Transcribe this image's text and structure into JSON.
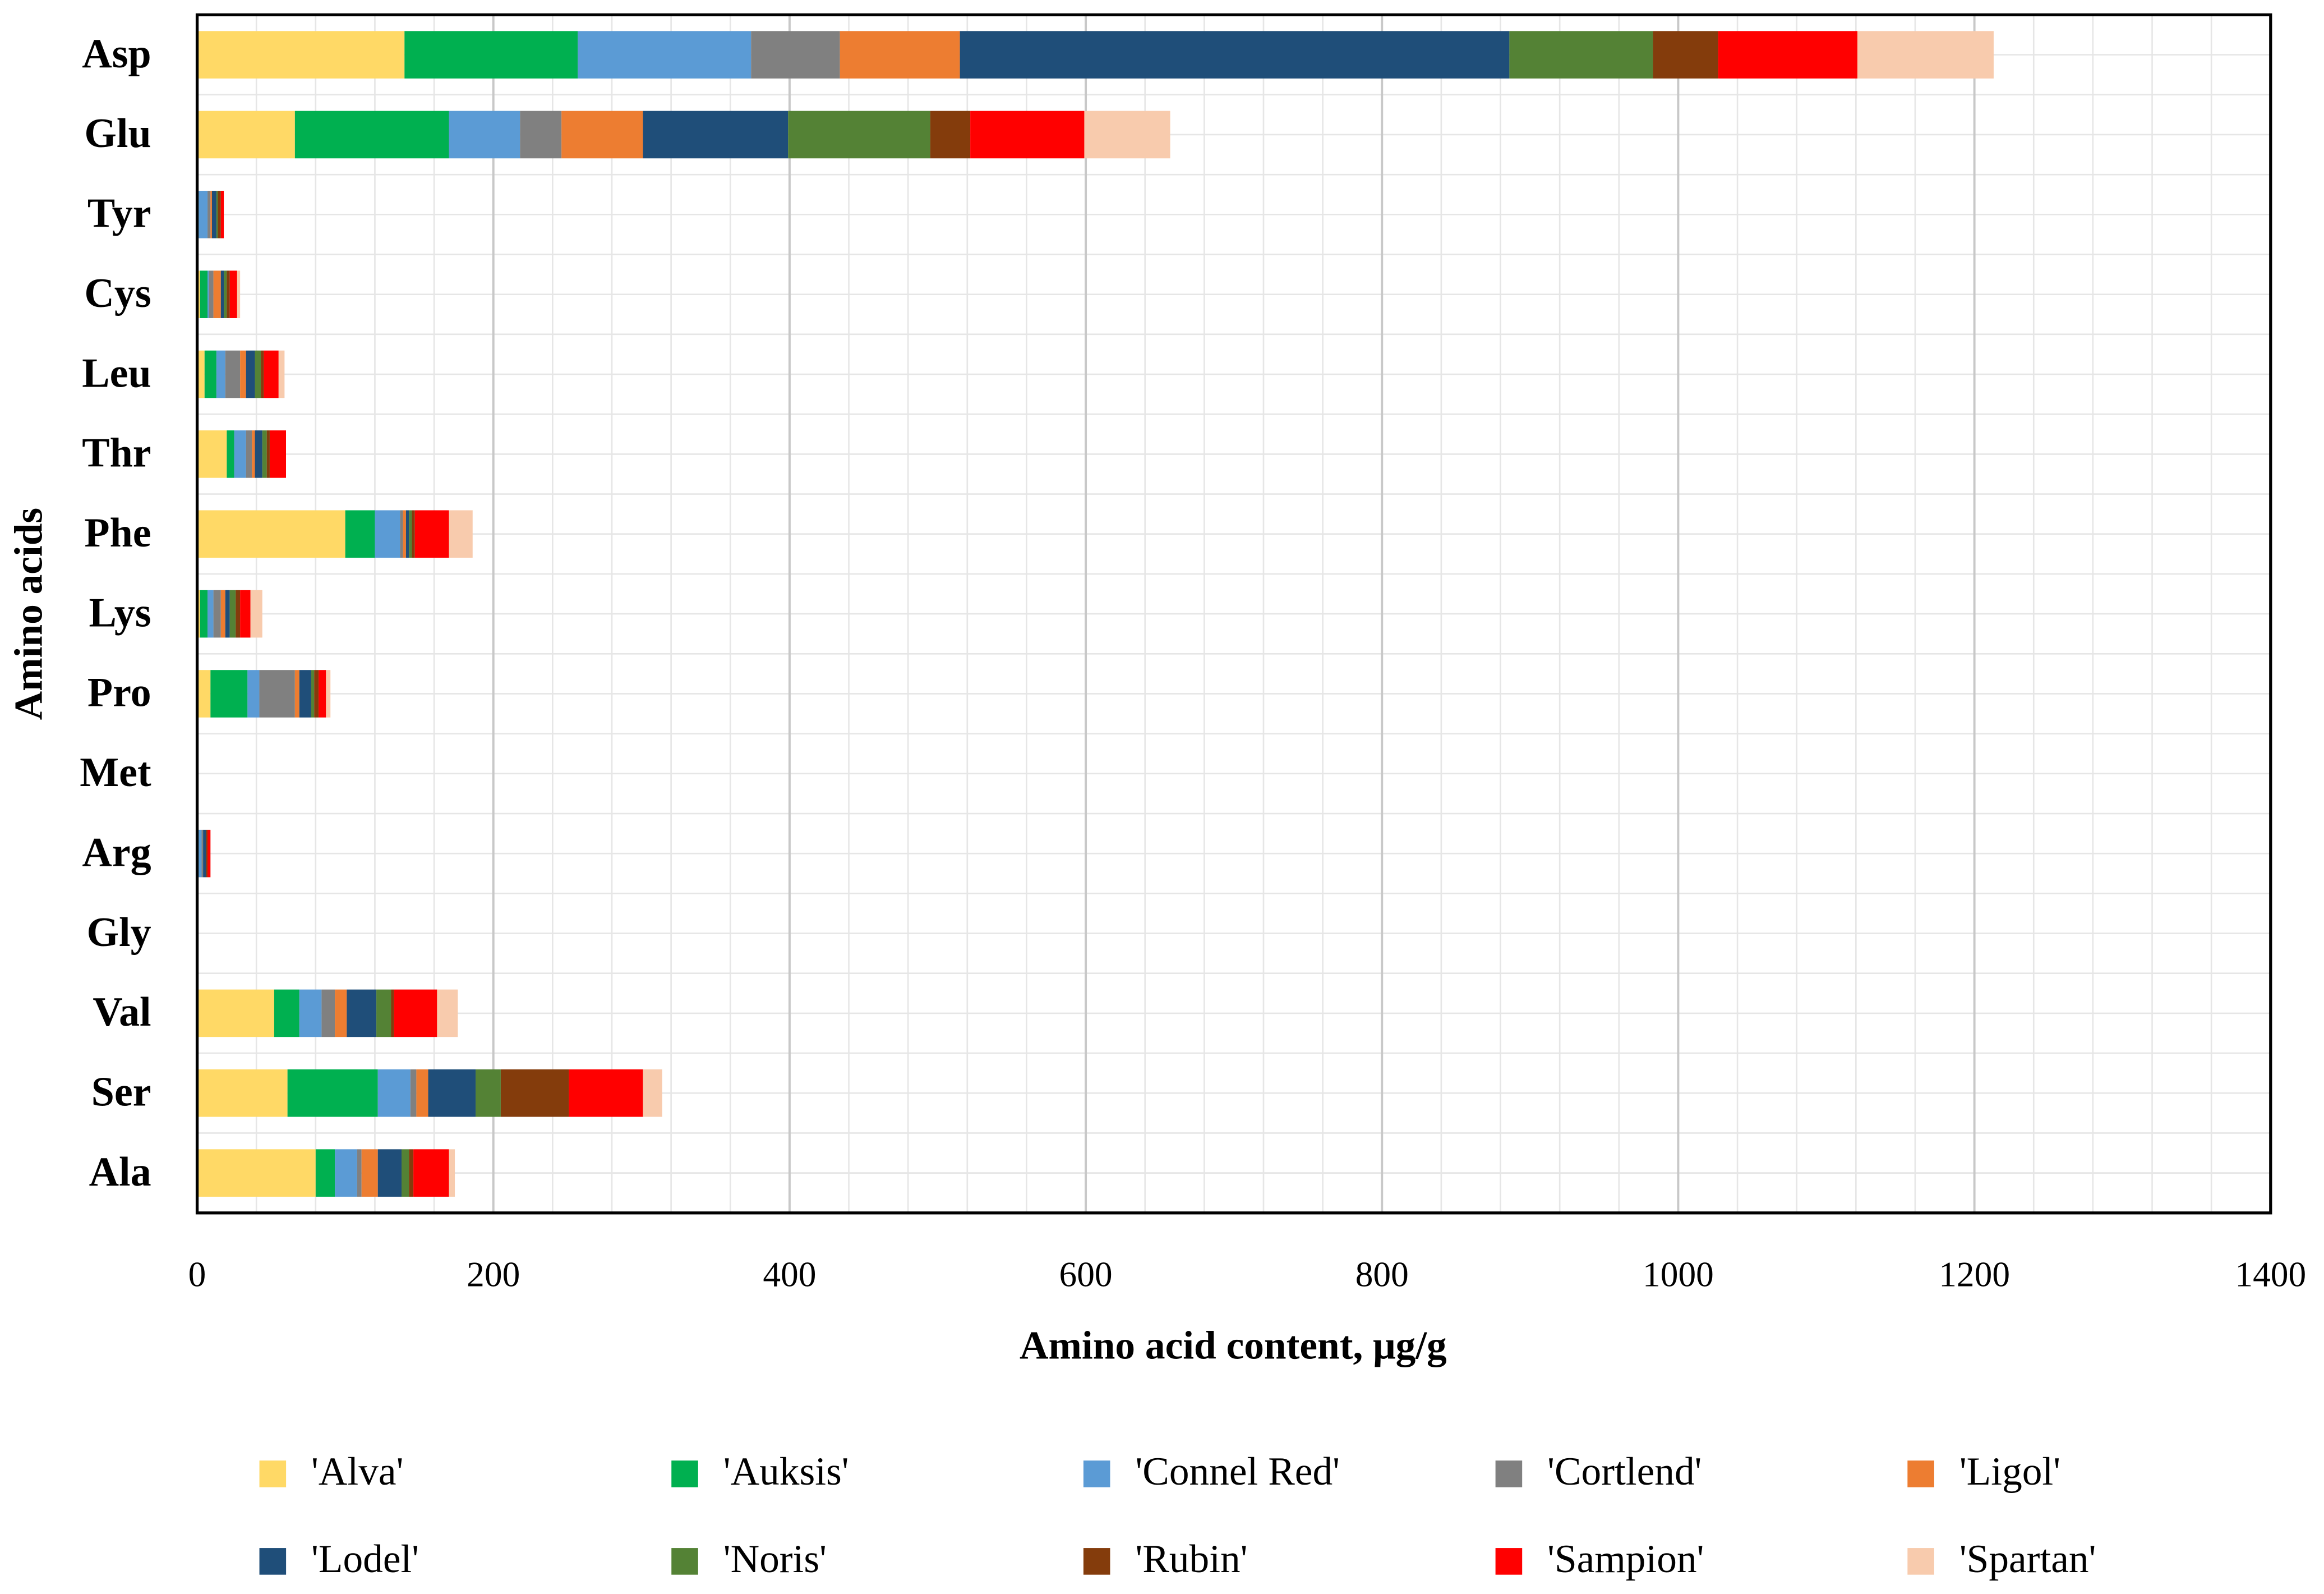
{
  "chart_data": {
    "type": "stacked-barh",
    "ylabel": "Amino acids",
    "xlabel": "Amino acid content, μg/g",
    "categories": [
      "Asp",
      "Glu",
      "Tyr",
      "Cys",
      "Leu",
      "Thr",
      "Phe",
      "Lys",
      "Pro",
      "Met",
      "Arg",
      "Gly",
      "Val",
      "Ser",
      "Ala"
    ],
    "xlim": [
      0,
      1400
    ],
    "xticks": [
      0,
      200,
      400,
      600,
      800,
      1000,
      1200,
      1400
    ],
    "grid": true,
    "series": [
      {
        "name": "'Alva'",
        "color": "#FFD966",
        "values": [
          140,
          66,
          0,
          2,
          5,
          20,
          100,
          2,
          9,
          0,
          0,
          0,
          52,
          61,
          80
        ]
      },
      {
        "name": "'Auksis'",
        "color": "#00B050",
        "values": [
          117,
          104,
          1,
          5,
          8,
          5,
          20,
          5,
          25,
          0,
          1,
          0,
          17,
          61,
          13
        ]
      },
      {
        "name": "'Connel Red'",
        "color": "#5B9BD5",
        "values": [
          117,
          48,
          6,
          1,
          6,
          8,
          17,
          4,
          8,
          0,
          2,
          0,
          15,
          22,
          15
        ]
      },
      {
        "name": "'Cortlend'",
        "color": "#808080",
        "values": [
          60,
          28,
          2,
          3,
          10,
          4,
          2,
          5,
          24,
          0,
          1,
          0,
          9,
          4,
          3
        ]
      },
      {
        "name": "'Ligol'",
        "color": "#ED7D31",
        "values": [
          81,
          55,
          1,
          5,
          4,
          2,
          2,
          3,
          3,
          0,
          0,
          0,
          8,
          8,
          11
        ]
      },
      {
        "name": "'Lodel'",
        "color": "#1F4E79",
        "values": [
          371,
          98,
          3,
          2,
          6,
          5,
          2,
          3,
          8,
          0,
          2,
          0,
          20,
          32,
          16
        ]
      },
      {
        "name": "'Noris'",
        "color": "#548235",
        "values": [
          97,
          96,
          1,
          2,
          4,
          3,
          2,
          4,
          2,
          0,
          0,
          0,
          10,
          17,
          5
        ]
      },
      {
        "name": "'Rubin'",
        "color": "#843C0C",
        "values": [
          44,
          27,
          2,
          2,
          2,
          2,
          2,
          3,
          3,
          0,
          1,
          0,
          2,
          46,
          3
        ]
      },
      {
        "name": "'Sampion'",
        "color": "#FF0000",
        "values": [
          94,
          77,
          2,
          5,
          10,
          11,
          23,
          7,
          5,
          0,
          2,
          0,
          29,
          50,
          24
        ]
      },
      {
        "name": "'Spartan'",
        "color": "#F8CBAD",
        "values": [
          92,
          58,
          0,
          2,
          4,
          0,
          16,
          8,
          3,
          0,
          0,
          0,
          14,
          13,
          4
        ]
      }
    ]
  }
}
